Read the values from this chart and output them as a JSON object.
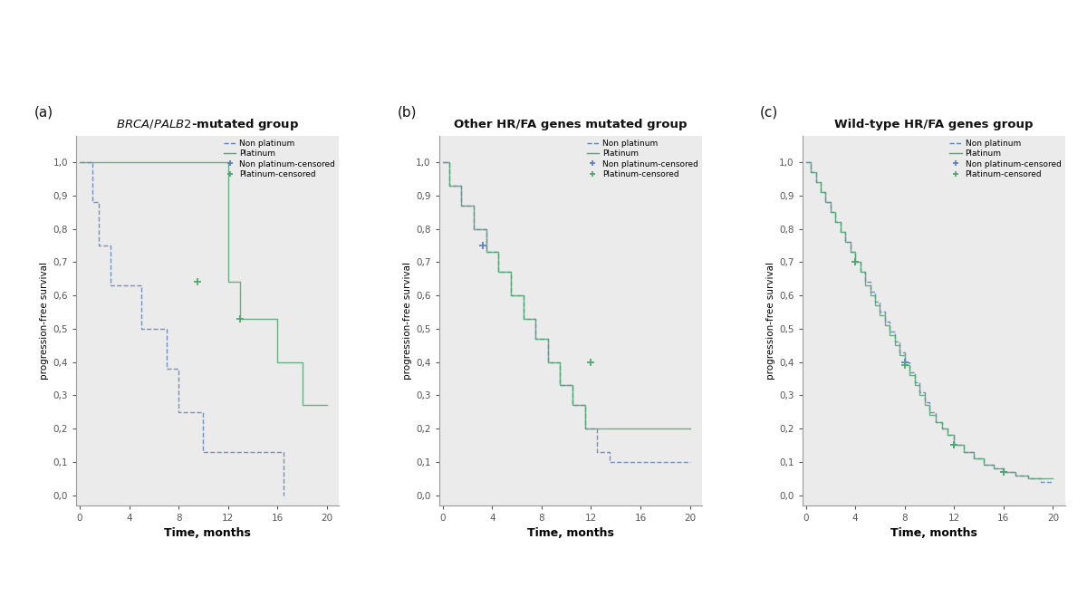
{
  "panels": [
    {
      "label": "(a)",
      "title_latex": "$\\it{BRCA/PALB2}$-mutated group",
      "non_platinum": {
        "times": [
          0,
          1,
          1.5,
          2,
          2.5,
          3,
          4,
          5,
          6,
          7,
          8,
          9,
          10,
          16,
          16.5
        ],
        "surv": [
          1.0,
          0.88,
          0.75,
          0.75,
          0.63,
          0.63,
          0.63,
          0.5,
          0.5,
          0.38,
          0.25,
          0.25,
          0.13,
          0.13,
          0.0
        ],
        "censored_times": [],
        "censored_surv": []
      },
      "platinum": {
        "times": [
          0,
          8,
          12,
          13,
          16,
          18,
          20
        ],
        "surv": [
          1.0,
          1.0,
          0.64,
          0.53,
          0.4,
          0.27,
          0.27
        ],
        "censored_times": [
          9.5,
          13
        ],
        "censored_surv": [
          0.64,
          0.53
        ]
      }
    },
    {
      "label": "(b)",
      "title_latex": "Other HR/FA genes mutated group",
      "non_platinum": {
        "times": [
          0,
          0.5,
          1.5,
          2.5,
          3.5,
          4.5,
          5.5,
          6.5,
          7.5,
          8.5,
          9.5,
          10.5,
          11.5,
          12.5,
          13.5,
          15,
          17,
          18,
          20
        ],
        "surv": [
          1.0,
          0.93,
          0.87,
          0.8,
          0.73,
          0.67,
          0.6,
          0.53,
          0.47,
          0.4,
          0.33,
          0.27,
          0.2,
          0.13,
          0.1,
          0.1,
          0.1,
          0.1,
          0.1
        ],
        "censored_times": [
          3.2
        ],
        "censored_surv": [
          0.75
        ]
      },
      "platinum": {
        "times": [
          0,
          0.5,
          1.5,
          2.5,
          3.5,
          4.5,
          5.5,
          6.5,
          7.5,
          8.5,
          9.5,
          10.5,
          11.5,
          12.5,
          14,
          16,
          18,
          20
        ],
        "surv": [
          1.0,
          0.93,
          0.87,
          0.8,
          0.73,
          0.67,
          0.6,
          0.53,
          0.47,
          0.4,
          0.33,
          0.27,
          0.2,
          0.2,
          0.2,
          0.2,
          0.2,
          0.2
        ],
        "censored_times": [
          12
        ],
        "censored_surv": [
          0.4
        ]
      }
    },
    {
      "label": "(c)",
      "title_latex": "Wild-type HR/FA genes group",
      "non_platinum": {
        "times": [
          0,
          0.4,
          0.8,
          1.2,
          1.6,
          2.0,
          2.4,
          2.8,
          3.2,
          3.6,
          4.0,
          4.4,
          4.8,
          5.2,
          5.6,
          6.0,
          6.4,
          6.8,
          7.2,
          7.6,
          8.0,
          8.4,
          8.8,
          9.2,
          9.6,
          10.0,
          10.5,
          11.0,
          11.5,
          12.0,
          12.8,
          13.6,
          14.4,
          15.2,
          16.0,
          17.0,
          18.0,
          19.0,
          20.0
        ],
        "surv": [
          1.0,
          0.97,
          0.94,
          0.91,
          0.88,
          0.85,
          0.82,
          0.79,
          0.76,
          0.73,
          0.7,
          0.67,
          0.64,
          0.61,
          0.58,
          0.55,
          0.52,
          0.49,
          0.46,
          0.43,
          0.4,
          0.37,
          0.34,
          0.31,
          0.28,
          0.25,
          0.22,
          0.2,
          0.18,
          0.15,
          0.13,
          0.11,
          0.09,
          0.08,
          0.07,
          0.06,
          0.05,
          0.04,
          0.04
        ],
        "censored_times": [
          4.0,
          8.0,
          12.0,
          16.0
        ],
        "censored_surv": [
          0.7,
          0.4,
          0.15,
          0.07
        ]
      },
      "platinum": {
        "times": [
          0,
          0.4,
          0.8,
          1.2,
          1.6,
          2.0,
          2.4,
          2.8,
          3.2,
          3.6,
          4.0,
          4.4,
          4.8,
          5.2,
          5.6,
          6.0,
          6.4,
          6.8,
          7.2,
          7.6,
          8.0,
          8.4,
          8.8,
          9.2,
          9.6,
          10.0,
          10.5,
          11.0,
          11.5,
          12.0,
          12.8,
          13.6,
          14.4,
          15.2,
          16.0,
          17.0,
          18.0,
          19.0,
          20.0
        ],
        "surv": [
          1.0,
          0.97,
          0.94,
          0.91,
          0.88,
          0.85,
          0.82,
          0.79,
          0.76,
          0.73,
          0.7,
          0.67,
          0.63,
          0.6,
          0.57,
          0.54,
          0.51,
          0.48,
          0.45,
          0.42,
          0.39,
          0.36,
          0.33,
          0.3,
          0.27,
          0.24,
          0.22,
          0.2,
          0.18,
          0.15,
          0.13,
          0.11,
          0.09,
          0.08,
          0.07,
          0.06,
          0.05,
          0.05,
          0.05
        ],
        "censored_times": [
          4.0,
          8.0,
          12.0,
          16.0
        ],
        "censored_surv": [
          0.7,
          0.39,
          0.15,
          0.07
        ]
      }
    }
  ],
  "non_platinum_color": "#6080BB",
  "platinum_color": "#50A870",
  "bg_color": "#EBEBEB",
  "outer_bg": "#FFFFFF",
  "ylabel": "progression-free survival",
  "xlabel": "Time, months",
  "ytick_labels": [
    "0,0",
    "0,1",
    "0,2",
    "0,3",
    "0,4",
    "0,5",
    "0,6",
    "0,7",
    "0,8",
    "0,9",
    "1,0"
  ],
  "ytick_values": [
    0.0,
    0.1,
    0.2,
    0.3,
    0.4,
    0.5,
    0.6,
    0.7,
    0.8,
    0.9,
    1.0
  ],
  "xticks": [
    0,
    4,
    8,
    12,
    16,
    20
  ],
  "xlim": [
    -0.3,
    21.0
  ],
  "ylim": [
    -0.03,
    1.08
  ]
}
